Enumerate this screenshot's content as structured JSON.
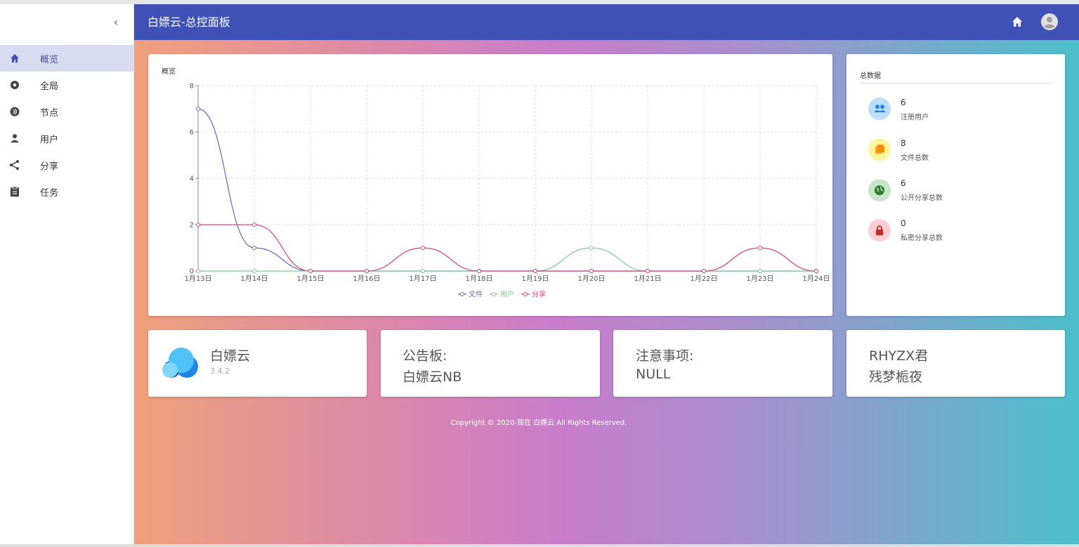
{
  "header": {
    "title": "白嫖云-总控面板"
  },
  "sidebar": {
    "items": [
      "概览",
      "全局",
      "节点",
      "用户",
      "分享",
      "任务"
    ]
  },
  "chart_data": {
    "type": "line",
    "title": "概览",
    "categories": [
      "1月13日",
      "1月14日",
      "1月15日",
      "1月16日",
      "1月17日",
      "1月18日",
      "1月19日",
      "1月20日",
      "1月21日",
      "1月22日",
      "1月23日",
      "1月24日"
    ],
    "series": [
      {
        "name": "文件",
        "color": "#5c6bc0",
        "values": [
          7,
          1,
          0,
          0,
          0,
          0,
          0,
          0,
          0,
          0,
          0,
          0
        ]
      },
      {
        "name": "用户",
        "color": "#81c995",
        "values": [
          0,
          0,
          0,
          0,
          0,
          0,
          0,
          1,
          0,
          0,
          0,
          0
        ]
      },
      {
        "name": "分享",
        "color": "#e0407a",
        "values": [
          2,
          2,
          0,
          0,
          1,
          0,
          0,
          0,
          0,
          0,
          1,
          0
        ]
      }
    ],
    "ylim": [
      0,
      8
    ],
    "yticks": [
      0,
      2,
      4,
      6,
      8
    ],
    "grid": true,
    "smooth": true
  },
  "stats": {
    "title": "总数据",
    "items": [
      {
        "value": 6,
        "label": "注册用户"
      },
      {
        "value": 8,
        "label": "文件总数"
      },
      {
        "value": 6,
        "label": "公开分享总数"
      },
      {
        "value": 0,
        "label": "私密分享总数"
      }
    ]
  },
  "cards": [
    {
      "title": "白嫖云",
      "subtitle": "3.4.2"
    },
    {
      "title": "公告板:",
      "text": "白嫖云NB"
    },
    {
      "title": "注意事项:",
      "text": "NULL"
    },
    {
      "title": "RHYZX君",
      "text": "残梦栀夜"
    }
  ],
  "footer": "Copyright © 2020-现在 白嫖云 All Rights Reserved."
}
